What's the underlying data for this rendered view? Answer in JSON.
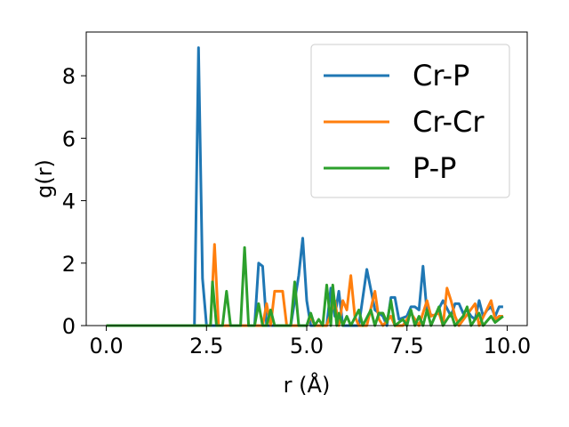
{
  "chart_data": {
    "type": "line",
    "title": "",
    "xlabel": "r (Å)",
    "ylabel": "g(r)",
    "xlim": [
      -0.5,
      10.5
    ],
    "ylim": [
      0,
      9.4
    ],
    "xticks": [
      "0.0",
      "2.5",
      "5.0",
      "7.5",
      "10.0"
    ],
    "xtick_values": [
      0,
      2.5,
      5,
      7.5,
      10
    ],
    "yticks": [
      "0",
      "2",
      "4",
      "6",
      "8"
    ],
    "ytick_values": [
      0,
      2,
      4,
      6,
      8
    ],
    "grid": false,
    "legend_position": "top-right",
    "series": [
      {
        "name": "Cr-P",
        "color": "#1f77b4",
        "points": [
          [
            0,
            0
          ],
          [
            2.2,
            0
          ],
          [
            2.3,
            8.9
          ],
          [
            2.4,
            1.5
          ],
          [
            2.5,
            0
          ],
          [
            3.7,
            0
          ],
          [
            3.8,
            2.0
          ],
          [
            3.9,
            1.9
          ],
          [
            4.0,
            0
          ],
          [
            4.6,
            0
          ],
          [
            4.8,
            1.6
          ],
          [
            4.9,
            2.8
          ],
          [
            5.0,
            0.8
          ],
          [
            5.1,
            0
          ],
          [
            5.5,
            0
          ],
          [
            5.6,
            1.2
          ],
          [
            5.7,
            0.3
          ],
          [
            5.8,
            1.1
          ],
          [
            5.9,
            0
          ],
          [
            6.3,
            0
          ],
          [
            6.5,
            1.8
          ],
          [
            6.7,
            0.5
          ],
          [
            6.9,
            0.3
          ],
          [
            7.0,
            0
          ],
          [
            7.1,
            0.9
          ],
          [
            7.2,
            0.9
          ],
          [
            7.3,
            0.2
          ],
          [
            7.5,
            0.3
          ],
          [
            7.6,
            0.6
          ],
          [
            7.7,
            0.6
          ],
          [
            7.8,
            0.5
          ],
          [
            7.9,
            1.9
          ],
          [
            8.0,
            0.4
          ],
          [
            8.2,
            0.3
          ],
          [
            8.4,
            0.8
          ],
          [
            8.6,
            0.3
          ],
          [
            8.7,
            0.7
          ],
          [
            8.8,
            0.7
          ],
          [
            8.9,
            0.4
          ],
          [
            9.0,
            0.5
          ],
          [
            9.1,
            0.3
          ],
          [
            9.2,
            0.2
          ],
          [
            9.3,
            0.8
          ],
          [
            9.4,
            0.3
          ],
          [
            9.5,
            0.5
          ],
          [
            9.6,
            0.6
          ],
          [
            9.7,
            0.3
          ],
          [
            9.8,
            0.6
          ],
          [
            9.9,
            0.6
          ]
        ]
      },
      {
        "name": "Cr-Cr",
        "color": "#ff7f0e",
        "points": [
          [
            0,
            0
          ],
          [
            2.6,
            0
          ],
          [
            2.7,
            2.6
          ],
          [
            2.8,
            0
          ],
          [
            3.9,
            0
          ],
          [
            4.0,
            0.7
          ],
          [
            4.1,
            0
          ],
          [
            4.2,
            1.1
          ],
          [
            4.4,
            1.1
          ],
          [
            4.5,
            0
          ],
          [
            5.0,
            0
          ],
          [
            5.1,
            0.3
          ],
          [
            5.2,
            0
          ],
          [
            5.5,
            0
          ],
          [
            5.7,
            0.8
          ],
          [
            5.8,
            0
          ],
          [
            5.9,
            0.8
          ],
          [
            6.0,
            0.5
          ],
          [
            6.1,
            1.6
          ],
          [
            6.2,
            0.3
          ],
          [
            6.3,
            0
          ],
          [
            6.5,
            0
          ],
          [
            6.7,
            1.1
          ],
          [
            6.8,
            0.2
          ],
          [
            6.9,
            0
          ],
          [
            7.1,
            0.3
          ],
          [
            7.2,
            0
          ],
          [
            7.4,
            0
          ],
          [
            7.6,
            0.4
          ],
          [
            7.8,
            0
          ],
          [
            8.0,
            0.8
          ],
          [
            8.1,
            0.3
          ],
          [
            8.3,
            0.4
          ],
          [
            8.4,
            0
          ],
          [
            8.5,
            1.2
          ],
          [
            8.6,
            0.8
          ],
          [
            8.7,
            0.3
          ],
          [
            8.8,
            0
          ],
          [
            9.2,
            0.7
          ],
          [
            9.3,
            0
          ],
          [
            9.6,
            0.8
          ],
          [
            9.7,
            0.2
          ],
          [
            9.8,
            0.3
          ],
          [
            9.9,
            0.3
          ]
        ]
      },
      {
        "name": "P-P",
        "color": "#2ca02c",
        "points": [
          [
            0,
            0
          ],
          [
            2.6,
            0
          ],
          [
            2.65,
            1.4
          ],
          [
            2.75,
            0
          ],
          [
            2.9,
            0
          ],
          [
            3.0,
            1.1
          ],
          [
            3.1,
            0
          ],
          [
            3.35,
            0
          ],
          [
            3.45,
            2.5
          ],
          [
            3.55,
            0
          ],
          [
            3.7,
            0
          ],
          [
            3.8,
            0.7
          ],
          [
            3.9,
            0
          ],
          [
            4.0,
            0
          ],
          [
            4.1,
            0.5
          ],
          [
            4.2,
            0
          ],
          [
            4.6,
            0
          ],
          [
            4.7,
            1.4
          ],
          [
            4.8,
            0
          ],
          [
            5.0,
            0
          ],
          [
            5.1,
            0.4
          ],
          [
            5.2,
            0
          ],
          [
            5.3,
            0.2
          ],
          [
            5.4,
            0
          ],
          [
            5.5,
            1.3
          ],
          [
            5.6,
            0
          ],
          [
            5.65,
            1.3
          ],
          [
            5.75,
            0
          ],
          [
            5.8,
            0.4
          ],
          [
            5.9,
            0
          ],
          [
            6.0,
            0.3
          ],
          [
            6.1,
            0
          ],
          [
            6.3,
            0.5
          ],
          [
            6.4,
            0
          ],
          [
            6.6,
            0.5
          ],
          [
            6.7,
            0
          ],
          [
            6.8,
            0.4
          ],
          [
            6.9,
            0.4
          ],
          [
            7.0,
            0.1
          ],
          [
            7.1,
            0.8
          ],
          [
            7.2,
            0
          ],
          [
            7.4,
            0.2
          ],
          [
            7.5,
            0
          ],
          [
            7.6,
            0.5
          ],
          [
            7.7,
            0
          ],
          [
            7.8,
            0.3
          ],
          [
            7.9,
            0
          ],
          [
            8.0,
            0.5
          ],
          [
            8.1,
            0
          ],
          [
            8.3,
            0.6
          ],
          [
            8.4,
            0
          ],
          [
            8.6,
            0.4
          ],
          [
            8.7,
            0
          ],
          [
            8.9,
            0.3
          ],
          [
            9.0,
            0.6
          ],
          [
            9.1,
            0
          ],
          [
            9.3,
            0.4
          ],
          [
            9.4,
            0
          ],
          [
            9.6,
            0.3
          ],
          [
            9.7,
            0.1
          ],
          [
            9.9,
            0.3
          ]
        ]
      }
    ]
  }
}
